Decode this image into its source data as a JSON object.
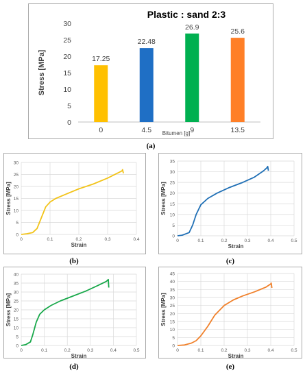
{
  "chart_data": [
    {
      "id": "a",
      "type": "bar",
      "title": "Plastic : sand  2:3",
      "xlabel": "Bitumen [g]",
      "ylabel": "Stress [MPa]",
      "categories": [
        "0",
        "4.5",
        "9",
        "13.5"
      ],
      "values": [
        17.25,
        22.48,
        26.9,
        25.6
      ],
      "value_labels": [
        "17.25",
        "22.48",
        "26.9",
        "25.6"
      ],
      "colors": [
        "#ffc000",
        "#1f6fc5",
        "#00b050",
        "#ff7f27"
      ],
      "ylim": [
        0,
        30
      ],
      "yticks": [
        "0",
        "5",
        "10",
        "15",
        "20",
        "25",
        "30"
      ],
      "grid": false,
      "caption": "(a)"
    },
    {
      "id": "b",
      "type": "line",
      "color": "#f2c318",
      "xlabel": "Strain",
      "ylabel": "Stress [MPa]",
      "xlim": [
        0,
        0.4
      ],
      "ylim": [
        0,
        30
      ],
      "xticks": [
        "0",
        "0.1",
        "0.2",
        "0.3",
        "0.4"
      ],
      "yticks": [
        "0",
        "5",
        "10",
        "15",
        "20",
        "25",
        "30"
      ],
      "grid": true,
      "x": [
        0,
        0.02,
        0.04,
        0.055,
        0.07,
        0.085,
        0.1,
        0.12,
        0.15,
        0.2,
        0.25,
        0.3,
        0.35,
        0.352,
        0.355
      ],
      "y": [
        0,
        0.3,
        0.8,
        2.5,
        7,
        11.5,
        13.5,
        15,
        16.5,
        19,
        21,
        23.5,
        26.5,
        27,
        25.5
      ],
      "caption": "(b)"
    },
    {
      "id": "c",
      "type": "line",
      "color": "#1f6fb5",
      "xlabel": "Strain",
      "ylabel": "Stress [MPa]",
      "xlim": [
        0,
        0.5
      ],
      "ylim": [
        0,
        35
      ],
      "xticks": [
        "0",
        "0.1",
        "0.2",
        "0.3",
        "0.4",
        "0.5"
      ],
      "yticks": [
        "0",
        "5",
        "10",
        "15",
        "20",
        "25",
        "30",
        "35"
      ],
      "grid": true,
      "x": [
        0,
        0.02,
        0.05,
        0.065,
        0.08,
        0.1,
        0.13,
        0.17,
        0.22,
        0.28,
        0.33,
        0.37,
        0.385,
        0.387,
        0.39
      ],
      "y": [
        0,
        0.3,
        1.5,
        5,
        10,
        14.5,
        17.5,
        20,
        22.5,
        25,
        27.5,
        30.5,
        32,
        32.5,
        30.5
      ],
      "caption": "(c)"
    },
    {
      "id": "d",
      "type": "line",
      "color": "#18a84a",
      "xlabel": "Strain",
      "ylabel": "Stress [MPa]",
      "xlim": [
        0,
        0.5
      ],
      "ylim": [
        0,
        40
      ],
      "xticks": [
        "0",
        "0.1",
        "0.2",
        "0.3",
        "0.4",
        "0.5"
      ],
      "yticks": [
        "0",
        "5",
        "10",
        "15",
        "20",
        "25",
        "30",
        "35",
        "40"
      ],
      "grid": true,
      "x": [
        0,
        0.02,
        0.04,
        0.05,
        0.065,
        0.08,
        0.1,
        0.13,
        0.17,
        0.22,
        0.28,
        0.33,
        0.37,
        0.378,
        0.38
      ],
      "y": [
        0,
        0.5,
        2,
        6,
        13,
        17.5,
        20,
        22.5,
        25,
        27.5,
        30.5,
        33.5,
        36,
        37,
        32.5
      ],
      "caption": "(d)"
    },
    {
      "id": "e",
      "type": "line",
      "color": "#f0802a",
      "xlabel": "Strain",
      "ylabel": "Stress [MPa]",
      "xlim": [
        0,
        0.5
      ],
      "ylim": [
        0,
        45
      ],
      "xticks": [
        "0",
        "0.1",
        "0.2",
        "0.3",
        "0.4",
        "0.5"
      ],
      "yticks": [
        "0",
        "5",
        "10",
        "15",
        "20",
        "25",
        "30",
        "35",
        "40",
        "45"
      ],
      "grid": true,
      "x": [
        0,
        0.03,
        0.06,
        0.08,
        0.1,
        0.13,
        0.16,
        0.2,
        0.24,
        0.28,
        0.33,
        0.38,
        0.4,
        0.402,
        0.405
      ],
      "y": [
        0,
        0.3,
        1.5,
        3,
        6,
        12,
        19,
        25,
        28.5,
        31,
        33.5,
        36.5,
        38.5,
        39,
        36
      ],
      "caption": "(e)"
    }
  ]
}
